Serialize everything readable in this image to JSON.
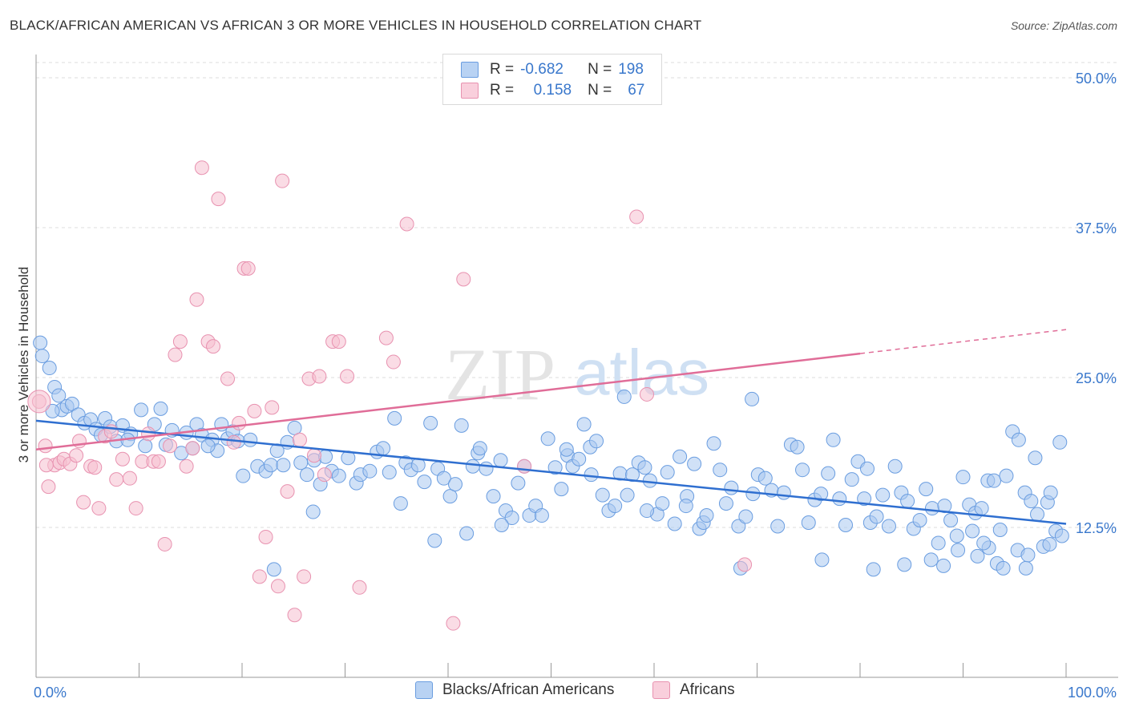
{
  "title": "BLACK/AFRICAN AMERICAN VS AFRICAN 3 OR MORE VEHICLES IN HOUSEHOLD CORRELATION CHART",
  "source": "Source: ZipAtlas.com",
  "watermark": "ZIPatlas",
  "legend_top": {
    "rows": [
      {
        "r_label": "R =",
        "r_value": "-0.682",
        "n_label": "N =",
        "n_value": "198"
      },
      {
        "r_label": "R =",
        "r_value": "0.158",
        "n_label": "N =",
        "n_value": "67"
      }
    ]
  },
  "colors": {
    "blue_fill": "#a9c8f0",
    "blue_stroke": "#6a9de0",
    "blue_line": "#2f6fd0",
    "pink_fill": "#f6bfd0",
    "pink_stroke": "#e892b0",
    "pink_line": "#e06d98",
    "axis_text": "#3a78cc",
    "grid": "#dddddd"
  },
  "chart_data": {
    "type": "scatter",
    "title": "BLACK/AFRICAN AMERICAN VS AFRICAN 3 OR MORE VEHICLES IN HOUSEHOLD CORRELATION CHART",
    "ylabel": "3 or more Vehicles in Household",
    "xlabel": "",
    "xlim": [
      0,
      100
    ],
    "ylim": [
      0,
      50
    ],
    "x_tick_labels": [
      "0.0%",
      "100.0%"
    ],
    "y_tick_labels": [
      "12.5%",
      "25.0%",
      "37.5%",
      "50.0%"
    ],
    "y_ticks": [
      12.5,
      25.0,
      37.5,
      50.0
    ],
    "grid": "horizontal dashed",
    "legend_position": "bottom",
    "series": [
      {
        "name": "Blacks/African Americans",
        "color": "#a9c8f0",
        "R": -0.682,
        "N": 198,
        "trend": {
          "x": [
            0,
            100
          ],
          "y": [
            21.4,
            12.8
          ]
        },
        "points": [
          [
            0.4,
            27.9
          ],
          [
            0.6,
            26.8
          ],
          [
            1.3,
            25.8
          ],
          [
            1.8,
            24.2
          ],
          [
            2.2,
            23.5
          ],
          [
            2.5,
            22.3
          ],
          [
            3.0,
            22.6
          ],
          [
            3.5,
            22.8
          ],
          [
            4.1,
            21.9
          ],
          [
            4.7,
            21.2
          ],
          [
            5.3,
            21.5
          ],
          [
            5.8,
            20.7
          ],
          [
            6.3,
            20.2
          ],
          [
            6.7,
            21.6
          ],
          [
            7.2,
            20.9
          ],
          [
            7.8,
            19.7
          ],
          [
            8.4,
            21.0
          ],
          [
            9.2,
            20.3
          ],
          [
            10.2,
            22.3
          ],
          [
            10.6,
            19.3
          ],
          [
            11.5,
            21.1
          ],
          [
            12.1,
            22.4
          ],
          [
            12.6,
            19.4
          ],
          [
            13.2,
            20.6
          ],
          [
            14.1,
            18.7
          ],
          [
            14.6,
            20.4
          ],
          [
            15.2,
            19.1
          ],
          [
            15.6,
            21.1
          ],
          [
            16.1,
            20.2
          ],
          [
            17.1,
            19.8
          ],
          [
            17.6,
            18.9
          ],
          [
            18.0,
            21.1
          ],
          [
            18.6,
            19.9
          ],
          [
            19.1,
            20.5
          ],
          [
            19.6,
            19.7
          ],
          [
            20.1,
            16.8
          ],
          [
            20.8,
            19.8
          ],
          [
            21.5,
            17.6
          ],
          [
            22.3,
            17.2
          ],
          [
            22.8,
            17.7
          ],
          [
            23.4,
            18.9
          ],
          [
            24.0,
            17.7
          ],
          [
            24.4,
            19.6
          ],
          [
            25.1,
            20.8
          ],
          [
            25.7,
            17.9
          ],
          [
            26.3,
            16.9
          ],
          [
            27.0,
            18.1
          ],
          [
            27.6,
            16.1
          ],
          [
            28.1,
            18.4
          ],
          [
            28.7,
            17.2
          ],
          [
            29.4,
            16.8
          ],
          [
            30.3,
            18.3
          ],
          [
            31.1,
            16.2
          ],
          [
            31.5,
            16.9
          ],
          [
            32.4,
            17.2
          ],
          [
            33.1,
            18.8
          ],
          [
            33.7,
            19.1
          ],
          [
            34.3,
            17.1
          ],
          [
            34.8,
            21.6
          ],
          [
            35.4,
            14.5
          ],
          [
            35.9,
            17.9
          ],
          [
            36.4,
            17.3
          ],
          [
            37.1,
            17.7
          ],
          [
            37.7,
            16.3
          ],
          [
            38.3,
            21.2
          ],
          [
            39.0,
            17.4
          ],
          [
            39.6,
            16.6
          ],
          [
            40.2,
            15.1
          ],
          [
            40.7,
            16.1
          ],
          [
            41.3,
            21.0
          ],
          [
            41.8,
            12.0
          ],
          [
            42.4,
            17.6
          ],
          [
            42.9,
            18.7
          ],
          [
            43.7,
            17.4
          ],
          [
            44.4,
            15.1
          ],
          [
            45.1,
            18.1
          ],
          [
            45.6,
            13.9
          ],
          [
            46.2,
            13.3
          ],
          [
            46.8,
            16.2
          ],
          [
            47.4,
            17.6
          ],
          [
            47.9,
            13.5
          ],
          [
            48.5,
            14.3
          ],
          [
            49.1,
            13.5
          ],
          [
            49.7,
            19.9
          ],
          [
            50.4,
            17.5
          ],
          [
            51.0,
            15.7
          ],
          [
            51.6,
            18.5
          ],
          [
            52.1,
            17.6
          ],
          [
            52.7,
            18.2
          ],
          [
            53.2,
            21.1
          ],
          [
            53.8,
            19.2
          ],
          [
            54.4,
            19.7
          ],
          [
            55.0,
            15.2
          ],
          [
            55.6,
            13.9
          ],
          [
            56.2,
            14.3
          ],
          [
            56.7,
            17.0
          ],
          [
            57.4,
            15.2
          ],
          [
            57.9,
            16.9
          ],
          [
            58.5,
            17.9
          ],
          [
            59.1,
            17.5
          ],
          [
            59.6,
            16.4
          ],
          [
            60.3,
            13.6
          ],
          [
            60.8,
            14.5
          ],
          [
            61.3,
            17.1
          ],
          [
            62.0,
            12.8
          ],
          [
            62.5,
            18.4
          ],
          [
            63.2,
            15.1
          ],
          [
            63.9,
            17.8
          ],
          [
            64.4,
            12.4
          ],
          [
            64.8,
            12.9
          ],
          [
            65.1,
            13.5
          ],
          [
            65.8,
            19.5
          ],
          [
            66.4,
            17.3
          ],
          [
            67.0,
            14.5
          ],
          [
            67.5,
            15.8
          ],
          [
            68.2,
            12.6
          ],
          [
            68.9,
            13.4
          ],
          [
            69.6,
            15.3
          ],
          [
            70.1,
            16.9
          ],
          [
            70.8,
            16.6
          ],
          [
            71.4,
            15.6
          ],
          [
            72.0,
            12.6
          ],
          [
            72.6,
            15.4
          ],
          [
            73.3,
            19.4
          ],
          [
            73.9,
            19.2
          ],
          [
            74.4,
            17.3
          ],
          [
            75.0,
            12.9
          ],
          [
            75.6,
            14.8
          ],
          [
            76.2,
            15.3
          ],
          [
            76.9,
            17.0
          ],
          [
            77.4,
            19.8
          ],
          [
            78.0,
            14.9
          ],
          [
            78.6,
            12.7
          ],
          [
            79.2,
            16.5
          ],
          [
            79.8,
            18.0
          ],
          [
            80.4,
            14.9
          ],
          [
            81.0,
            12.9
          ],
          [
            81.6,
            13.4
          ],
          [
            82.2,
            15.2
          ],
          [
            82.8,
            12.6
          ],
          [
            83.4,
            17.6
          ],
          [
            84.0,
            15.4
          ],
          [
            84.6,
            14.7
          ],
          [
            85.2,
            12.4
          ],
          [
            85.8,
            13.1
          ],
          [
            86.4,
            15.7
          ],
          [
            87.0,
            14.1
          ],
          [
            87.6,
            11.2
          ],
          [
            88.2,
            14.3
          ],
          [
            88.8,
            13.1
          ],
          [
            89.4,
            11.8
          ],
          [
            90.0,
            16.7
          ],
          [
            90.6,
            14.4
          ],
          [
            91.2,
            13.7
          ],
          [
            91.8,
            14.1
          ],
          [
            92.4,
            16.4
          ],
          [
            93.0,
            16.4
          ],
          [
            93.6,
            12.3
          ],
          [
            94.2,
            16.8
          ],
          [
            94.8,
            20.5
          ],
          [
            95.4,
            19.8
          ],
          [
            96.0,
            15.4
          ],
          [
            96.6,
            14.7
          ],
          [
            97.2,
            13.6
          ],
          [
            97.8,
            10.9
          ],
          [
            98.4,
            11.1
          ],
          [
            99.0,
            12.2
          ],
          [
            99.6,
            11.8
          ],
          [
            1.6,
            22.2
          ],
          [
            8.9,
            19.8
          ],
          [
            16.7,
            19.3
          ],
          [
            26.9,
            13.8
          ],
          [
            38.7,
            11.4
          ],
          [
            45.2,
            12.7
          ],
          [
            57.1,
            23.4
          ],
          [
            69.5,
            23.2
          ],
          [
            76.3,
            9.8
          ],
          [
            81.3,
            9.0
          ],
          [
            84.3,
            9.4
          ],
          [
            86.9,
            9.8
          ],
          [
            88.1,
            9.3
          ],
          [
            89.5,
            10.6
          ],
          [
            91.4,
            10.1
          ],
          [
            92.5,
            10.8
          ],
          [
            93.3,
            9.5
          ],
          [
            93.9,
            9.1
          ],
          [
            95.3,
            10.6
          ],
          [
            96.1,
            9.1
          ],
          [
            97.0,
            18.3
          ],
          [
            98.2,
            14.6
          ],
          [
            98.5,
            15.4
          ],
          [
            99.4,
            19.6
          ],
          [
            23.1,
            9.0
          ],
          [
            43.1,
            19.1
          ],
          [
            51.5,
            19.0
          ],
          [
            53.9,
            16.9
          ],
          [
            59.3,
            13.9
          ],
          [
            68.4,
            9.1
          ],
          [
            80.7,
            17.4
          ],
          [
            90.9,
            12.2
          ],
          [
            96.3,
            10.2
          ],
          [
            92.0,
            11.2
          ],
          [
            63.1,
            14.3
          ]
        ]
      },
      {
        "name": "Africans",
        "color": "#f6bfd0",
        "R": 0.158,
        "N": 67,
        "trend_solid": {
          "x": [
            0,
            80
          ],
          "y": [
            19.0,
            27.0
          ]
        },
        "trend_dashed": {
          "x": [
            80,
            100
          ],
          "y": [
            27.0,
            29.0
          ]
        },
        "points": [
          [
            0.3,
            23.0
          ],
          [
            0.9,
            19.3
          ],
          [
            1.2,
            15.9
          ],
          [
            1.8,
            17.7
          ],
          [
            2.3,
            17.9
          ],
          [
            2.7,
            18.2
          ],
          [
            3.3,
            17.8
          ],
          [
            3.9,
            18.5
          ],
          [
            4.2,
            19.7
          ],
          [
            4.6,
            14.6
          ],
          [
            5.3,
            17.6
          ],
          [
            5.7,
            17.5
          ],
          [
            6.1,
            14.1
          ],
          [
            6.7,
            20.1
          ],
          [
            7.3,
            20.5
          ],
          [
            7.8,
            16.5
          ],
          [
            8.4,
            18.2
          ],
          [
            9.1,
            16.6
          ],
          [
            9.7,
            14.1
          ],
          [
            10.3,
            18.0
          ],
          [
            10.9,
            20.3
          ],
          [
            11.4,
            18.0
          ],
          [
            11.9,
            18.0
          ],
          [
            12.5,
            11.1
          ],
          [
            13.0,
            19.3
          ],
          [
            13.5,
            26.9
          ],
          [
            14.0,
            28.0
          ],
          [
            14.6,
            17.6
          ],
          [
            15.2,
            19.1
          ],
          [
            15.6,
            31.5
          ],
          [
            16.1,
            42.5
          ],
          [
            16.7,
            28.0
          ],
          [
            17.2,
            27.6
          ],
          [
            17.7,
            39.9
          ],
          [
            18.6,
            24.9
          ],
          [
            19.2,
            19.6
          ],
          [
            19.7,
            21.2
          ],
          [
            20.2,
            34.1
          ],
          [
            20.6,
            34.1
          ],
          [
            21.2,
            22.2
          ],
          [
            21.7,
            8.4
          ],
          [
            22.3,
            11.7
          ],
          [
            22.9,
            22.5
          ],
          [
            23.5,
            7.6
          ],
          [
            23.9,
            41.4
          ],
          [
            24.4,
            15.5
          ],
          [
            25.1,
            5.2
          ],
          [
            25.6,
            19.8
          ],
          [
            26.0,
            8.4
          ],
          [
            26.5,
            24.9
          ],
          [
            27.0,
            18.5
          ],
          [
            27.5,
            25.1
          ],
          [
            28.0,
            16.9
          ],
          [
            28.8,
            28.0
          ],
          [
            29.4,
            28.0
          ],
          [
            30.2,
            25.1
          ],
          [
            31.4,
            7.5
          ],
          [
            34.0,
            28.3
          ],
          [
            34.7,
            26.3
          ],
          [
            36.0,
            37.8
          ],
          [
            40.5,
            4.5
          ],
          [
            41.5,
            33.2
          ],
          [
            47.4,
            17.6
          ],
          [
            58.3,
            38.4
          ],
          [
            59.3,
            23.6
          ],
          [
            68.8,
            9.4
          ],
          [
            1.0,
            17.7
          ]
        ]
      }
    ]
  }
}
